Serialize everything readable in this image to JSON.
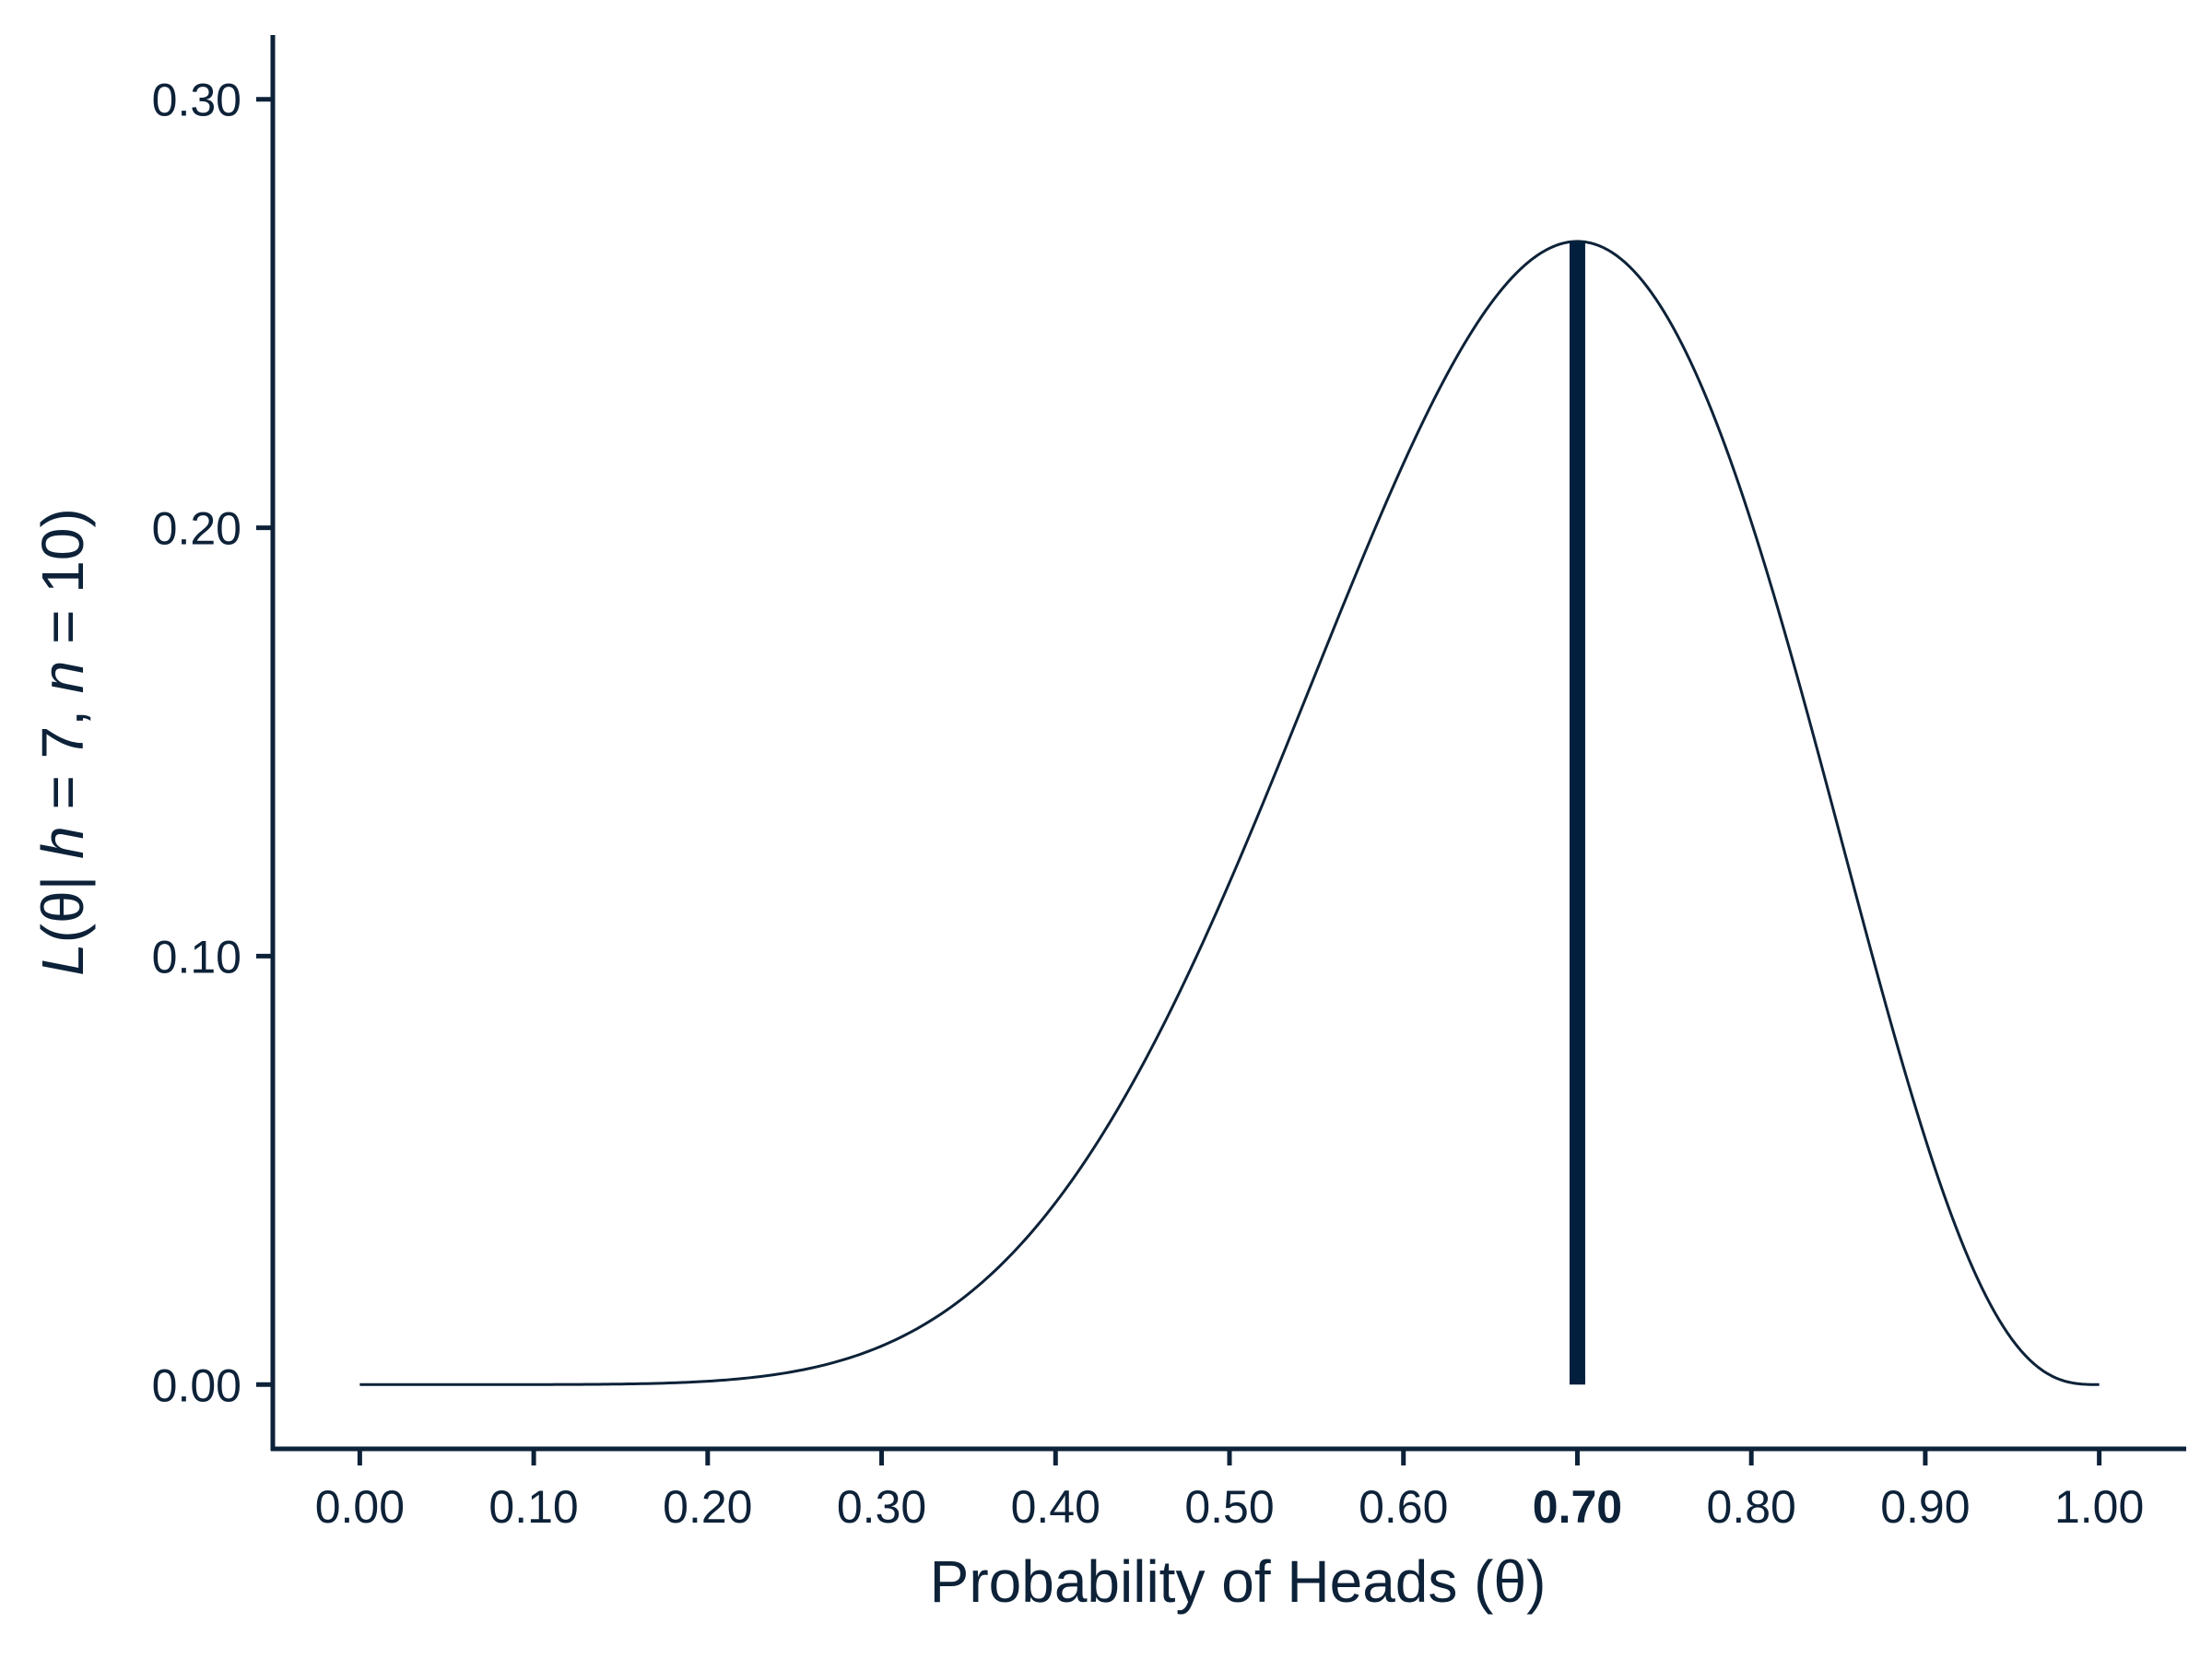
{
  "chart_data": {
    "type": "line",
    "xlabel": "Probability of Heads (θ)",
    "ylabel": {
      "parts": [
        {
          "text": "L",
          "italic": true
        },
        {
          "text": "(θ| ",
          "italic": false
        },
        {
          "text": "h",
          "italic": true
        },
        {
          "text": " = 7, ",
          "italic": false
        },
        {
          "text": "n",
          "italic": true
        },
        {
          "text": " = 10)",
          "italic": false
        }
      ]
    },
    "xlim": [
      -0.05,
      1.05
    ],
    "ylim": [
      -0.015,
      0.315
    ],
    "xticks": [
      {
        "value": 0.0,
        "label": "0.00"
      },
      {
        "value": 0.1,
        "label": "0.10"
      },
      {
        "value": 0.2,
        "label": "0.20"
      },
      {
        "value": 0.3,
        "label": "0.30"
      },
      {
        "value": 0.4,
        "label": "0.40"
      },
      {
        "value": 0.5,
        "label": "0.50"
      },
      {
        "value": 0.6,
        "label": "0.60"
      },
      {
        "value": 0.7,
        "label": "0.70",
        "bold": true
      },
      {
        "value": 0.8,
        "label": "0.80"
      },
      {
        "value": 0.9,
        "label": "0.90"
      },
      {
        "value": 1.0,
        "label": "1.00"
      }
    ],
    "yticks": [
      {
        "value": 0.0,
        "label": "0.00"
      },
      {
        "value": 0.1,
        "label": "0.10"
      },
      {
        "value": 0.2,
        "label": "0.20"
      },
      {
        "value": 0.3,
        "label": "0.30"
      }
    ],
    "series": [
      {
        "x": [
          0.0,
          0.05,
          0.1,
          0.15,
          0.2,
          0.25,
          0.3,
          0.35,
          0.4,
          0.45,
          0.5,
          0.55,
          0.6,
          0.65,
          0.7,
          0.75,
          0.8,
          0.85,
          0.9,
          0.95,
          1.0
        ],
        "y": [
          0.0,
          0.0,
          0.0,
          0.0001,
          0.0008,
          0.0031,
          0.009,
          0.0212,
          0.0425,
          0.0746,
          0.1172,
          0.1665,
          0.215,
          0.2522,
          0.2668,
          0.2503,
          0.2013,
          0.1298,
          0.0574,
          0.0105,
          0.0
        ]
      }
    ],
    "vline": {
      "x": 0.7,
      "y_top": 0.2668
    },
    "grid": false,
    "legend": "none",
    "colors": {
      "ink": "#0d2238",
      "vline": "#02203d",
      "background": "#ffffff"
    }
  }
}
